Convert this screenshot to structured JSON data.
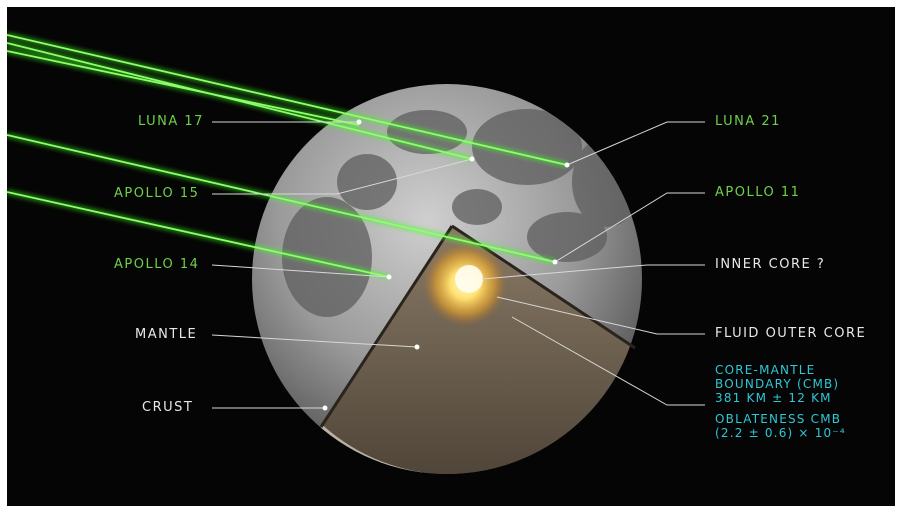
{
  "labels": {
    "luna17": "LUNA 17",
    "apollo15": "APOLLO 15",
    "apollo14": "APOLLO 14",
    "mantle": "MANTLE",
    "crust": "CRUST",
    "luna21": "LUNA 21",
    "apollo11": "APOLLO 11",
    "inner_core": "INNER CORE ?",
    "fluid_outer_core": "FLUID OUTER CORE"
  },
  "cmb": {
    "line1": "CORE-MANTLE",
    "line2": "BOUNDARY (CMB)",
    "line3": "381 KM ± 12 KM"
  },
  "oblateness": {
    "line1": "OBLATENESS CMB",
    "line2": "(2.2 ± 0.6) × 10⁻⁴"
  },
  "colors": {
    "background": "#050505",
    "laser": "#5cff3a",
    "retroreflector_label": "#6ed14a",
    "structure_label": "#e8e8e8",
    "cmb_label": "#2fc7d6"
  }
}
